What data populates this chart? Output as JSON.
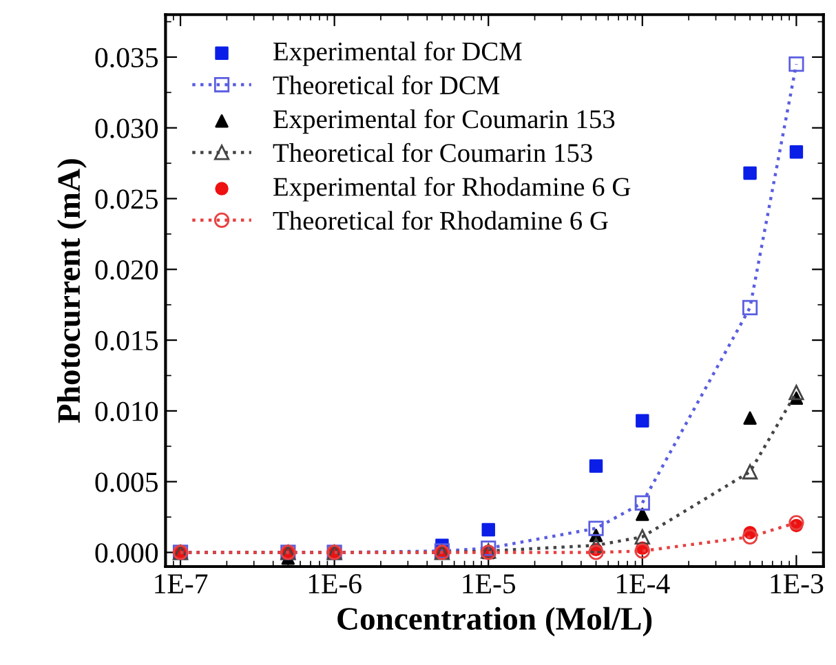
{
  "chart_data": {
    "type": "scatter",
    "xlabel": "Concentration (Mol/L)",
    "ylabel": "Photocurrent (mA)",
    "log": "x",
    "x": [
      1e-07,
      5e-07,
      1e-06,
      5e-06,
      1e-05,
      5e-05,
      0.0001,
      0.0005,
      0.001
    ],
    "xlim": [
      8e-08,
      0.0015
    ],
    "xticks": [
      {
        "value": 1e-07,
        "label": "1E-7"
      },
      {
        "value": 1e-06,
        "label": "1E-6"
      },
      {
        "value": 1e-05,
        "label": "1E-5"
      },
      {
        "value": 0.0001,
        "label": "1E-4"
      },
      {
        "value": 0.001,
        "label": "1E-3"
      }
    ],
    "ylim": [
      -0.001,
      0.038
    ],
    "yticks": [
      {
        "value": 0,
        "label": "0.000"
      },
      {
        "value": 0.005,
        "label": "0.005"
      },
      {
        "value": 0.01,
        "label": "0.010"
      },
      {
        "value": 0.015,
        "label": "0.015"
      },
      {
        "value": 0.02,
        "label": "0.020"
      },
      {
        "value": 0.025,
        "label": "0.025"
      },
      {
        "value": 0.03,
        "label": "0.030"
      },
      {
        "value": 0.035,
        "label": "0.035"
      }
    ],
    "grid": false,
    "legend": "top left",
    "series": [
      {
        "name": "Experimental for DCM",
        "marker": "square",
        "color": "#0a1ee8",
        "values": [
          null,
          null,
          null,
          0.0005,
          0.0016,
          0.0061,
          0.0093,
          0.0268,
          0.0283
        ]
      },
      {
        "name": "Theoretical for DCM",
        "type": "line",
        "marker": "square",
        "line_style": "dotted",
        "color": "#5a5ee0",
        "values": [
          0,
          0,
          0,
          0.0001,
          0.0003,
          0.0017,
          0.0035,
          0.0173,
          0.0345
        ]
      },
      {
        "name": "Experimental for Coumarin 153",
        "marker": "triangle",
        "color": "#000000",
        "values": [
          null,
          -0.0004,
          null,
          null,
          0,
          0.0012,
          0.0027,
          0.0095,
          0.0109
        ]
      },
      {
        "name": "Theoretical for Coumarin 153",
        "type": "line",
        "marker": "triangle",
        "line_style": "dotted",
        "color": "#444444",
        "values": [
          0,
          0,
          0,
          0,
          0.0001,
          0.0005,
          0.0011,
          0.0057,
          0.0113
        ]
      },
      {
        "name": "Experimental for Rhodamine 6 G",
        "marker": "circle",
        "color": "#ee1111",
        "values": [
          0,
          0,
          0,
          0,
          0,
          0.0002,
          0.0003,
          0.0014,
          0.0019
        ]
      },
      {
        "name": "Theoretical for Rhodamine 6 G",
        "type": "line",
        "marker": "circle",
        "line_style": "dotted",
        "color": "#e84040",
        "values": [
          0,
          0,
          0,
          0,
          0,
          0,
          0.0001,
          0.0011,
          0.0021
        ]
      }
    ]
  }
}
